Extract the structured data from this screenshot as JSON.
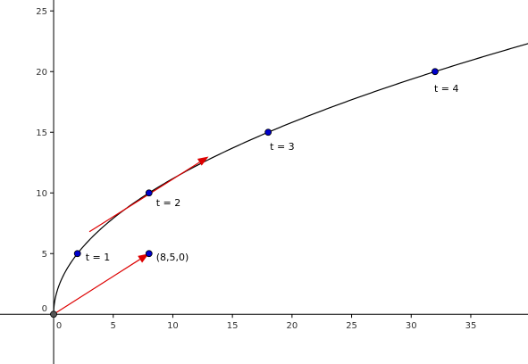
{
  "chart_data": {
    "type": "line",
    "title": "",
    "xlabel": "",
    "ylabel": "",
    "xlim": [
      -4.5,
      39.8
    ],
    "ylim": [
      -4.1,
      25.9
    ],
    "grid": false,
    "x_ticks": [
      0,
      5,
      10,
      15,
      20,
      25,
      30,
      35
    ],
    "y_ticks": [
      0,
      5,
      10,
      15,
      20,
      25
    ],
    "curve": {
      "parametric": "r(t) = (2t^2, 5t)",
      "t_range": [
        0,
        4.47
      ],
      "color": "#000000"
    },
    "points": [
      {
        "label": "t = 1",
        "x": 2,
        "y": 5,
        "color": "#0000cc"
      },
      {
        "label": "t = 2",
        "x": 8,
        "y": 10,
        "color": "#0000cc"
      },
      {
        "label": "t = 3",
        "x": 18,
        "y": 15,
        "color": "#0000cc"
      },
      {
        "label": "t = 4",
        "x": 32,
        "y": 20,
        "color": "#0000cc"
      },
      {
        "label": "(8,5,0)",
        "x": 8,
        "y": 5,
        "color": "#0000cc"
      }
    ],
    "origin_point": {
      "x": 0,
      "y": 0,
      "color": "#555555"
    },
    "vectors": [
      {
        "name": "position-vector",
        "from": [
          0,
          0
        ],
        "to": [
          8,
          5
        ],
        "color": "#dd0000"
      },
      {
        "name": "tangent-vector",
        "from": [
          3.0,
          6.8
        ],
        "to": [
          13.0,
          13.0
        ],
        "color": "#dd0000"
      }
    ]
  }
}
